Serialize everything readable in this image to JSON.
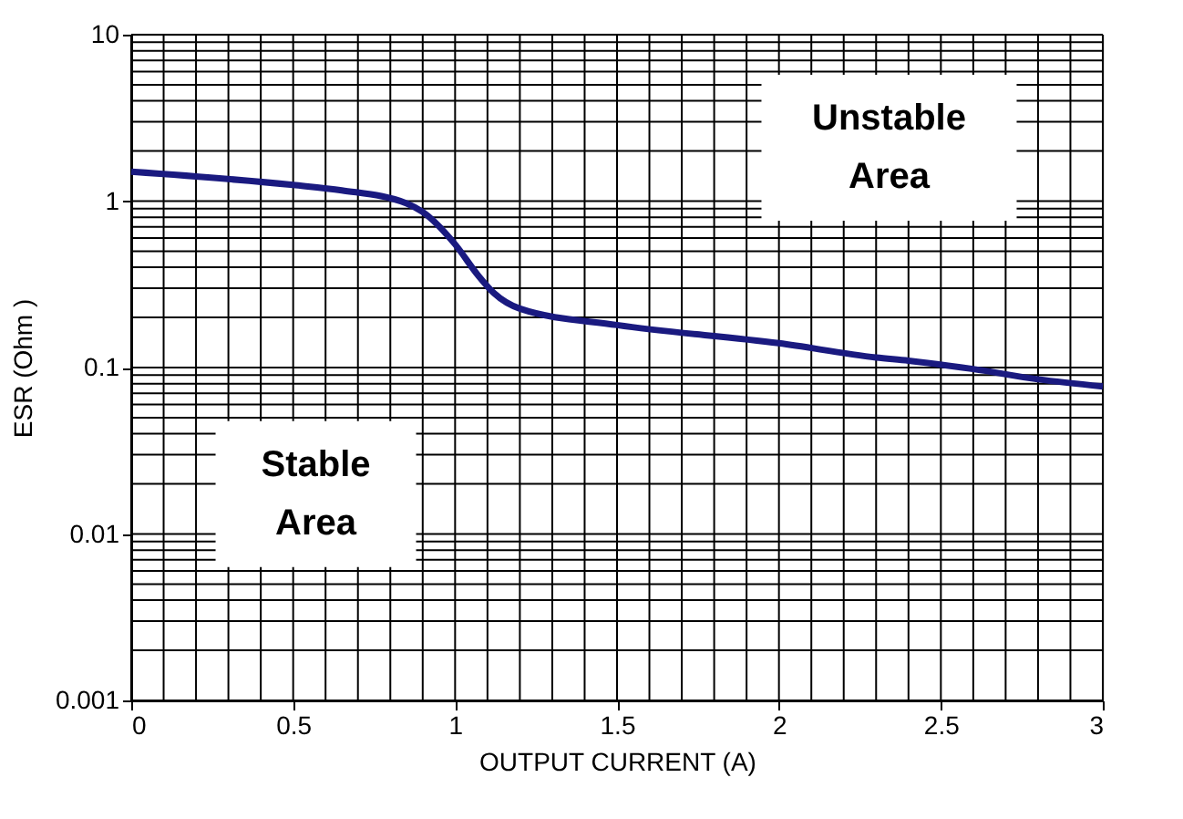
{
  "chart_data": {
    "type": "line",
    "xlabel": "OUTPUT CURRENT (A)",
    "ylabel": "ESR (Ohm )",
    "x": [
      0,
      0.5,
      0.65,
      0.85,
      0.9,
      1.0,
      1.07,
      1.12,
      1.2,
      1.5,
      2.0,
      2.3,
      2.4,
      2.6,
      2.8,
      3.0
    ],
    "series": [
      {
        "color": "#1a1a80",
        "values": [
          1.5,
          1.25,
          1.16,
          0.97,
          0.86,
          0.55,
          0.36,
          0.28,
          0.226,
          0.18,
          0.14,
          0.115,
          0.11,
          0.098,
          0.085,
          0.077
        ]
      }
    ],
    "xlim": [
      0,
      3
    ],
    "xticks": [
      0,
      0.5,
      1,
      1.5,
      2,
      2.5,
      3
    ],
    "ylim": [
      0.001,
      10
    ],
    "yticks": [
      0.001,
      0.01,
      0.1,
      1,
      10
    ],
    "log": "y",
    "grid": true,
    "marker": "none",
    "line_style": "solid",
    "annotations": [
      "Unstable\nArea",
      "Stable\nArea"
    ]
  }
}
